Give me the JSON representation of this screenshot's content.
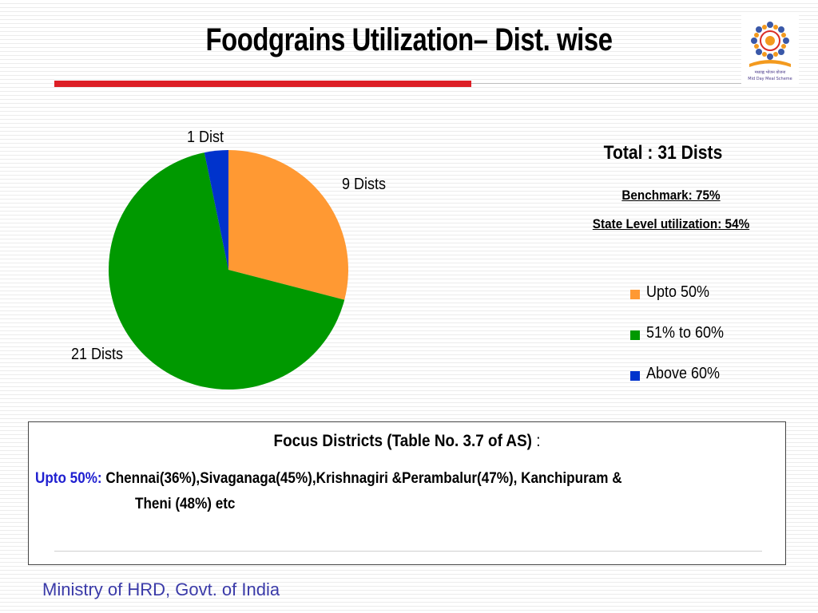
{
  "slide": {
    "title": "Foodgrains Utilization– Dist. wise",
    "logo_text": "Mid Day Meal Scheme",
    "logo_hindi": "मध्याह्न भोजन योजना",
    "footer": "Ministry of HRD, Govt. of India"
  },
  "info": {
    "total": "Total : 31 Dists",
    "benchmark": "Benchmark: 75%",
    "state_level": "State Level  utilization: 54%"
  },
  "chart_data": {
    "type": "pie",
    "categories": [
      "Upto 50%",
      "51% to 60%",
      "Above 60%"
    ],
    "values": [
      9,
      21,
      1
    ],
    "slice_labels": [
      "9 Dists",
      "21 Dists",
      "1 Dist"
    ],
    "colors": [
      "#ff9933",
      "#009900",
      "#0033cc"
    ],
    "legend": "right"
  },
  "focus": {
    "heading": "Focus Districts (Table No. 3.7 of AS)",
    "heading_suffix": " :",
    "prefix": "Upto  50%:",
    "line1": " Chennai(36%),Sivaganaga(45%),Krishnagiri &Perambalur(47%), Kanchipuram &",
    "line2": "Theni (48%) etc"
  }
}
